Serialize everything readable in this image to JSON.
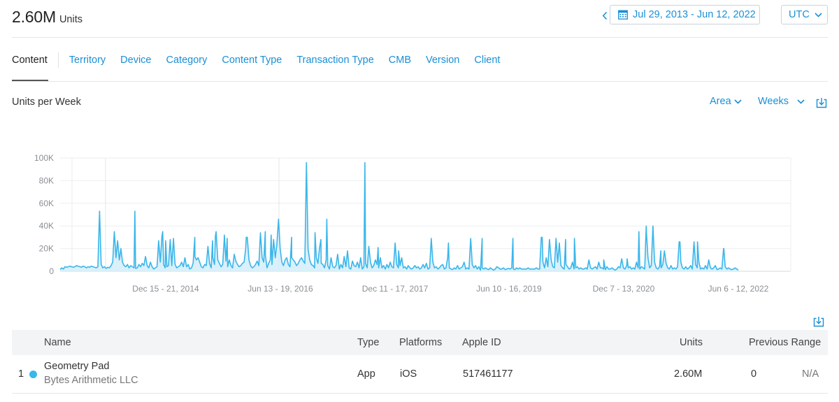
{
  "header": {
    "total_value": "2.60M",
    "total_unit": "Units",
    "date_range": "Jul 29, 2013 - Jun 12, 2022",
    "timezone": "UTC"
  },
  "tabs": [
    "Content",
    "Territory",
    "Device",
    "Category",
    "Content Type",
    "Transaction Type",
    "CMB",
    "Version",
    "Client"
  ],
  "active_tab": "Content",
  "chart_controls": {
    "title": "Units per Week",
    "chart_type_label": "Area",
    "interval_label": "Weeks"
  },
  "colors": {
    "accent": "#1a8fd6",
    "series_line": "#3ab6ea",
    "series_fill": "#d6eef9"
  },
  "chart_data": {
    "type": "area",
    "title": "Units per Week",
    "interval": "week",
    "y_ticks": [
      "0",
      "20K",
      "40K",
      "60K",
      "80K",
      "100K"
    ],
    "ylim": [
      0,
      100000
    ],
    "x_tick_labels": [
      "Dec 15 - 21, 2014",
      "Jun 13 - 19, 2016",
      "Dec 11 - 17, 2017",
      "Jun 10 - 16, 2019",
      "Dec 7 - 13, 2020",
      "Jun 6 - 12, 2022"
    ],
    "x_range": [
      "2013-07-29",
      "2022-06-12"
    ],
    "grid": true,
    "peaks": [
      {
        "x": "2014-07-21",
        "y": 53000
      },
      {
        "x": "2014-12-01",
        "y": 35000
      },
      {
        "x": "2014-12-15",
        "y": 27000
      },
      {
        "x": "2015-05-04",
        "y": 13000
      },
      {
        "x": "2015-07-27",
        "y": 27000
      },
      {
        "x": "2015-08-10",
        "y": 31000
      },
      {
        "x": "2015-09-21",
        "y": 28000
      },
      {
        "x": "2015-10-05",
        "y": 29000
      },
      {
        "x": "2016-01-04",
        "y": 30000
      },
      {
        "x": "2016-04-04",
        "y": 35000
      },
      {
        "x": "2016-05-02",
        "y": 32000
      },
      {
        "x": "2016-08-08",
        "y": 30000
      },
      {
        "x": "2016-11-28",
        "y": 34000
      },
      {
        "x": "2016-12-26",
        "y": 28000
      },
      {
        "x": "2017-01-23",
        "y": 46000
      },
      {
        "x": "2017-07-24",
        "y": 96000
      },
      {
        "x": "2017-09-25",
        "y": 21000
      },
      {
        "x": "2018-01-01",
        "y": 18000
      },
      {
        "x": "2018-06-04",
        "y": 22000
      },
      {
        "x": "2018-08-27",
        "y": 25000
      },
      {
        "x": "2019-02-04",
        "y": 29000
      },
      {
        "x": "2019-07-01",
        "y": 29000
      },
      {
        "x": "2019-11-18",
        "y": 30000
      },
      {
        "x": "2020-03-09",
        "y": 28000
      },
      {
        "x": "2020-04-20",
        "y": 29000
      },
      {
        "x": "2020-09-07",
        "y": 10000
      },
      {
        "x": "2020-12-28",
        "y": 11000
      },
      {
        "x": "2021-02-22",
        "y": 35000
      },
      {
        "x": "2021-03-29",
        "y": 40000
      },
      {
        "x": "2021-06-07",
        "y": 18000
      },
      {
        "x": "2021-09-06",
        "y": 26000
      },
      {
        "x": "2021-11-29",
        "y": 26000
      },
      {
        "x": "2022-04-04",
        "y": 20000
      }
    ],
    "series": [
      {
        "values": [
          1500,
          3000,
          2000,
          4000,
          3500,
          4000,
          4500,
          4000,
          3500,
          4000,
          5000,
          4500,
          4000,
          3500,
          4500,
          4000,
          3000,
          4000,
          3500,
          4500,
          4000,
          3500,
          3000,
          4000,
          53000,
          6000,
          3000,
          4000,
          2500,
          3500,
          3000,
          5000,
          8000,
          35000,
          12000,
          27000,
          10000,
          20000,
          8000,
          5000,
          4000,
          6000,
          3000,
          5000,
          4000,
          3000,
          2500,
          3000,
          6000,
          4000,
          7000,
          5000,
          13000,
          5000,
          3000,
          8000,
          4000,
          2000,
          3000,
          4000,
          27000,
          8000,
          31000,
          6000,
          3000,
          4000,
          5000,
          28000,
          5000,
          29000,
          6000,
          3000,
          4000,
          5000,
          8000,
          4000,
          12000,
          4000,
          6000,
          2000,
          3000,
          7000,
          30000,
          10000,
          12000,
          8000,
          4000,
          3000,
          6000,
          5000,
          22000,
          7000,
          3000,
          12000,
          6000,
          35000,
          10000,
          7000,
          4000,
          6000,
          32000,
          9000,
          4000,
          10000,
          5000,
          3000,
          15000,
          9000,
          6000,
          4000,
          5000,
          7000,
          8000,
          20000,
          30000,
          10000,
          5000,
          3000,
          4000,
          6000,
          9000,
          5000,
          34000,
          12000,
          8000,
          14000,
          3000,
          7000,
          10000,
          6000,
          28000,
          12000,
          24000,
          46000,
          20000,
          8000,
          5000,
          10000,
          12000,
          6000,
          4000,
          12000,
          10000,
          8000,
          5000,
          7000,
          10000,
          12000,
          9000,
          7000,
          96000,
          20000,
          10000,
          6000,
          5000,
          3000,
          12000,
          7000,
          21000,
          7000,
          6000,
          3000,
          10000,
          5000,
          2000,
          12000,
          4000,
          3000,
          5000,
          15000,
          2000,
          6000,
          3000,
          13000,
          4000,
          18000,
          3000,
          2000,
          9000,
          5000,
          4000,
          8000,
          3000,
          12000,
          2000,
          4000,
          7000,
          3000,
          22000,
          8000,
          3000,
          5000,
          10000,
          6000,
          3000,
          12000,
          3000,
          5000,
          2000,
          6000,
          3000,
          8000,
          4000,
          3000,
          25000,
          6000,
          3000,
          5000,
          12000,
          3000,
          4000,
          2000,
          5000,
          3000,
          2000,
          3000,
          5000,
          3000,
          4000,
          2000,
          3000,
          6000,
          3000,
          7000,
          2000,
          3000,
          29000,
          8000,
          3000,
          4000,
          2000,
          3000,
          5000,
          6000,
          2000,
          3000,
          12000,
          3000,
          2000,
          1500,
          3000,
          2000,
          5000,
          2000,
          3000,
          4000,
          8000,
          2000,
          3000,
          2000,
          29000,
          6000,
          3000,
          5000,
          2000,
          4000,
          1000,
          3000,
          2000,
          3000,
          2000,
          1500,
          3000,
          2000,
          1000,
          2000,
          4000,
          3000,
          2000,
          2000,
          3000,
          1500,
          2000,
          2500,
          2000,
          3000,
          2000,
          1500,
          3000,
          2000,
          3000,
          2000,
          2000,
          2000,
          2000,
          3000,
          2000,
          2000,
          2000,
          2000,
          3000,
          2000,
          2000,
          30000,
          8000,
          3000,
          12000,
          4000,
          28000,
          10000,
          4000,
          3000,
          29000,
          8000,
          25000,
          5000,
          3000,
          2000,
          6000,
          4000,
          2000,
          3000,
          8000,
          2000,
          3000,
          4000,
          2000,
          3000,
          2000,
          2000,
          3000,
          2000,
          10000,
          3000,
          2000,
          3000,
          4000,
          2000,
          8000,
          3000,
          3000,
          2000,
          1500,
          4000,
          2000,
          2000,
          3000,
          2000,
          1000,
          2000,
          4000,
          3000,
          11000,
          3000,
          2000,
          5000,
          3000,
          4000,
          2000,
          3000,
          2000,
          8000,
          3000,
          2000,
          4000,
          3000,
          2000,
          35000,
          12000,
          3000,
          5000,
          40000,
          8000,
          3000,
          2000,
          4000,
          3000,
          6000,
          18000,
          7000,
          3000,
          2000,
          5000,
          2000,
          3000,
          2000,
          4000,
          26000,
          8000,
          3000,
          2000,
          4000,
          2000,
          3000,
          5000,
          2000,
          26000,
          6000,
          3000,
          8000,
          2000,
          3000,
          2000,
          5000,
          2000,
          10000,
          3000,
          2000,
          3000,
          5000,
          1500,
          2000,
          3000,
          2000,
          20000,
          4000,
          2000,
          3000,
          2000,
          1500,
          2000,
          3000,
          2000,
          1000
        ]
      }
    ]
  },
  "table": {
    "columns": [
      "Name",
      "Type",
      "Platforms",
      "Apple ID",
      "Units",
      "Previous Range"
    ],
    "rows": [
      {
        "rank": "1",
        "name": "Geometry Pad",
        "developer": "Bytes Arithmetic LLC",
        "type": "App",
        "platforms": "iOS",
        "apple_id": "517461177",
        "units": "2.60M",
        "previous_units": "0",
        "previous_change": "N/A"
      }
    ]
  }
}
